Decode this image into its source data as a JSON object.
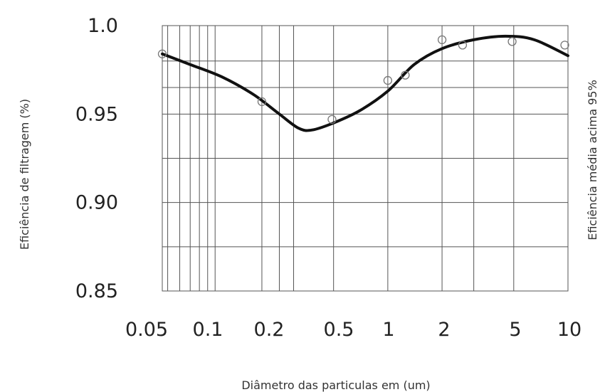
{
  "chart_data": {
    "type": "scatter",
    "title": "",
    "xlabel": "Diâmetro das particulas em (um)",
    "ylabel": "Eficiência de filtragem (%)",
    "ylabel_right": "Eficiência média acima 95%",
    "x_scale": "log",
    "xlim": [
      0.056,
      10
    ],
    "ylim": [
      0.85,
      1.0
    ],
    "grid": true,
    "x_ticks": [
      {
        "value": 0.05,
        "label": "0.05"
      },
      {
        "value": 0.1,
        "label": "0.1"
      },
      {
        "value": 0.2,
        "label": "0.2"
      },
      {
        "value": 0.5,
        "label": "0.5"
      },
      {
        "value": 1,
        "label": "1"
      },
      {
        "value": 2,
        "label": "2"
      },
      {
        "value": 5,
        "label": "5"
      },
      {
        "value": 10,
        "label": "10"
      }
    ],
    "y_ticks": [
      {
        "value": 0.85,
        "label": "0.85"
      },
      {
        "value": 0.9,
        "label": "0.90"
      },
      {
        "value": 0.95,
        "label": "0.95"
      },
      {
        "value": 1.0,
        "label": "1.0"
      }
    ],
    "x_gridlines": [
      0.056,
      0.06,
      0.07,
      0.08,
      0.09,
      0.1,
      0.11,
      0.2,
      0.25,
      0.3,
      0.5,
      1,
      2,
      3,
      5,
      10
    ],
    "y_gridlines": [
      0.875,
      0.9,
      0.925,
      0.95,
      0.965,
      0.98
    ],
    "series": [
      {
        "kind": "measured",
        "points": [
          {
            "x": 0.056,
            "y": 0.984
          },
          {
            "x": 0.2,
            "y": 0.957
          },
          {
            "x": 0.49,
            "y": 0.947
          },
          {
            "x": 1.0,
            "y": 0.969
          },
          {
            "x": 1.25,
            "y": 0.972
          },
          {
            "x": 2.0,
            "y": 0.992
          },
          {
            "x": 2.6,
            "y": 0.989
          },
          {
            "x": 4.9,
            "y": 0.991
          },
          {
            "x": 9.6,
            "y": 0.989
          }
        ]
      },
      {
        "kind": "fit",
        "points": [
          {
            "x": 0.056,
            "y": 0.984
          },
          {
            "x": 0.08,
            "y": 0.978
          },
          {
            "x": 0.12,
            "y": 0.971
          },
          {
            "x": 0.18,
            "y": 0.961
          },
          {
            "x": 0.25,
            "y": 0.95
          },
          {
            "x": 0.32,
            "y": 0.942
          },
          {
            "x": 0.38,
            "y": 0.941
          },
          {
            "x": 0.5,
            "y": 0.945
          },
          {
            "x": 0.7,
            "y": 0.952
          },
          {
            "x": 1.0,
            "y": 0.963
          },
          {
            "x": 1.4,
            "y": 0.978
          },
          {
            "x": 2.0,
            "y": 0.987
          },
          {
            "x": 3.0,
            "y": 0.992
          },
          {
            "x": 4.5,
            "y": 0.994
          },
          {
            "x": 6.5,
            "y": 0.992
          },
          {
            "x": 10.0,
            "y": 0.983
          }
        ]
      }
    ]
  }
}
